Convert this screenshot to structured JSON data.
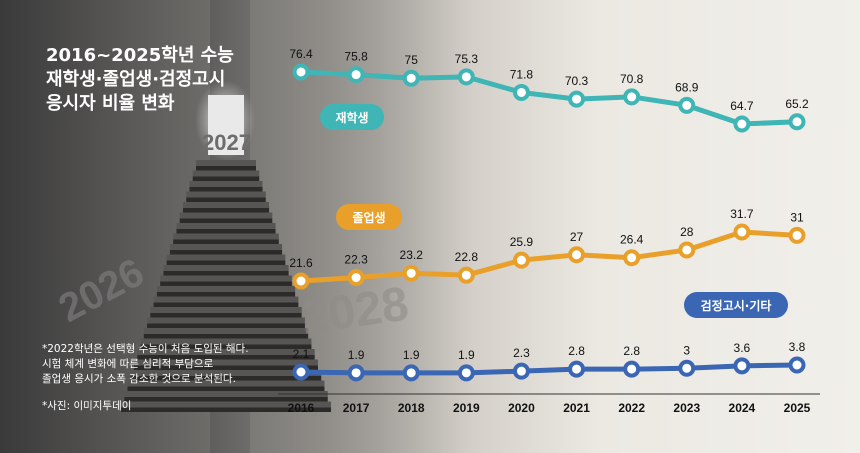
{
  "title": "2016~2025학년 수능\n재학생·졸업생·검정고시\n응시자 비율 변화",
  "note": "*2022학년은 선택형 수능이 처음 도입된 해다.\n  시험 체계 변화에 따른 심리적 부담으로\n  졸업생 응시가 소폭 감소한 것으로 분석된다.",
  "credit": "*사진: 이미지투데이",
  "photo": {
    "wall_years": [
      "2027",
      "2026",
      "2028"
    ]
  },
  "colors": {
    "enrolled": "#3fb5b5",
    "graduate": "#e9a02b",
    "ged": "#3a66b4",
    "axis": "#333333"
  },
  "chart_data": {
    "type": "line",
    "title": "2016~2025학년 수능 재학생·졸업생·검정고시 응시자 비율 변화",
    "categories": [
      "2016",
      "2017",
      "2018",
      "2019",
      "2020",
      "2021",
      "2022",
      "2023",
      "2024",
      "2025"
    ],
    "ylim": [
      0,
      80
    ],
    "series": [
      {
        "key": "enrolled",
        "name": "재학생",
        "values": [
          76.4,
          75.8,
          75,
          75.3,
          71.8,
          70.3,
          70.8,
          68.9,
          64.7,
          65.2
        ]
      },
      {
        "key": "graduate",
        "name": "졸업생",
        "values": [
          21.6,
          22.3,
          23.2,
          22.8,
          25.9,
          27,
          26.4,
          28,
          31.7,
          31
        ]
      },
      {
        "key": "ged",
        "name": "검정고시·기타",
        "values": [
          2.1,
          1.9,
          1.9,
          1.9,
          2.3,
          2.8,
          2.8,
          3,
          3.6,
          3.8
        ]
      }
    ],
    "grid": false,
    "legend": "inline tags"
  }
}
